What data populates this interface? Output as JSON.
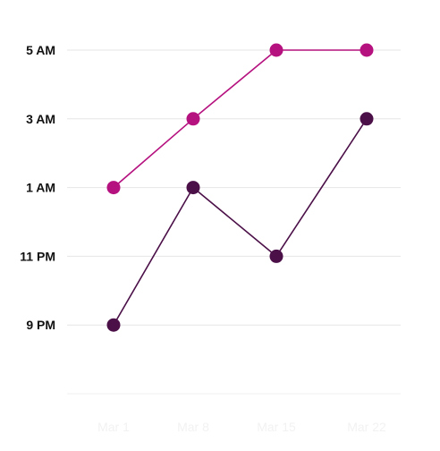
{
  "chart_data": {
    "type": "line",
    "categories": [
      "Mar 1",
      "Mar 8",
      "Mar 15",
      "Mar 22"
    ],
    "y_ticks": [
      "9 PM",
      "11 PM",
      "1 AM",
      "3 AM",
      "5 AM"
    ],
    "y_tick_values": [
      21,
      23,
      25,
      27,
      29
    ],
    "ylim": [
      19,
      29
    ],
    "grid": true,
    "series": [
      {
        "color": "#b5117f",
        "values": [
          25,
          27,
          29,
          29
        ]
      },
      {
        "color": "#4b1048",
        "values": [
          21,
          25,
          23,
          27
        ]
      }
    ]
  }
}
